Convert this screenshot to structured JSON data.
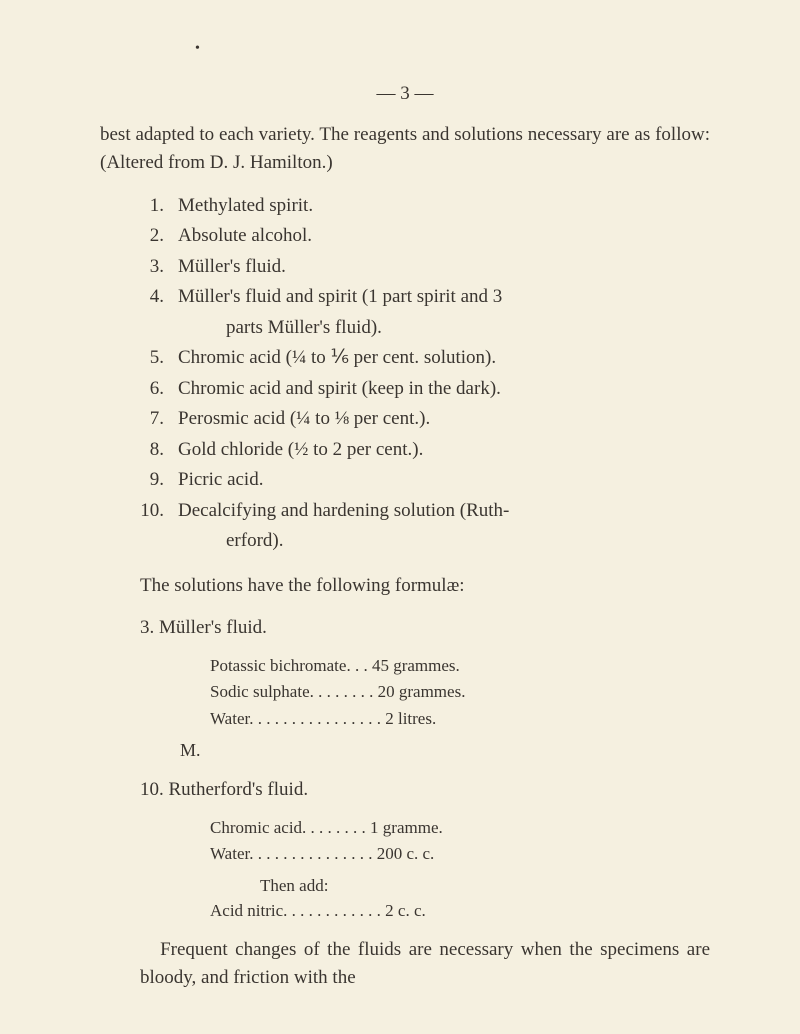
{
  "dot": "•",
  "pageNum": "— 3 —",
  "intro": "best adapted to each variety. The reagents and solutions necessary are as follow: (Altered from D. J. Hamilton.)",
  "items": [
    {
      "n": "1.",
      "t": "Methylated spirit."
    },
    {
      "n": "2.",
      "t": "Absolute alcohol."
    },
    {
      "n": "3.",
      "t": "Müller's fluid."
    },
    {
      "n": "4.",
      "t": "Müller's fluid and spirit (1 part spirit and 3",
      "c": "parts Müller's fluid)."
    },
    {
      "n": "5.",
      "t": "Chromic acid (¼ to ⅙ per cent. solution)."
    },
    {
      "n": "6.",
      "t": "Chromic acid and spirit (keep in the dark)."
    },
    {
      "n": "7.",
      "t": "Perosmic acid (¼ to ⅛ per cent.)."
    },
    {
      "n": "8.",
      "t": "Gold chloride (½ to 2 per cent.)."
    },
    {
      "n": "9.",
      "t": "Picric acid."
    },
    {
      "n": "10.",
      "t": "Decalcifying and hardening solution (Ruth-",
      "c": "erford)."
    }
  ],
  "subhead": "The solutions have the following formulæ:",
  "f3head": "3.   Müller's fluid.",
  "f3": [
    "Potassic bichromate. . .  45 grammes.",
    "Sodic sulphate. . . . . . . .  20 grammes.",
    "Water. . . . . . . . . . . . . . . .  2 litres."
  ],
  "mline": "M.",
  "f10head": "10.   Rutherford's fluid.",
  "f10a": [
    "Chromic acid. . . . .  . . .     1 gramme.",
    "Water. . . . . . . . . . . . . . .  200 c. c."
  ],
  "thenadd": "Then add:",
  "f10b": "Acid nitric. . . . . . . . . . . .     2 c. c.",
  "outro": "Frequent changes of the fluids are necessary when the specimens are bloody, and friction with the"
}
